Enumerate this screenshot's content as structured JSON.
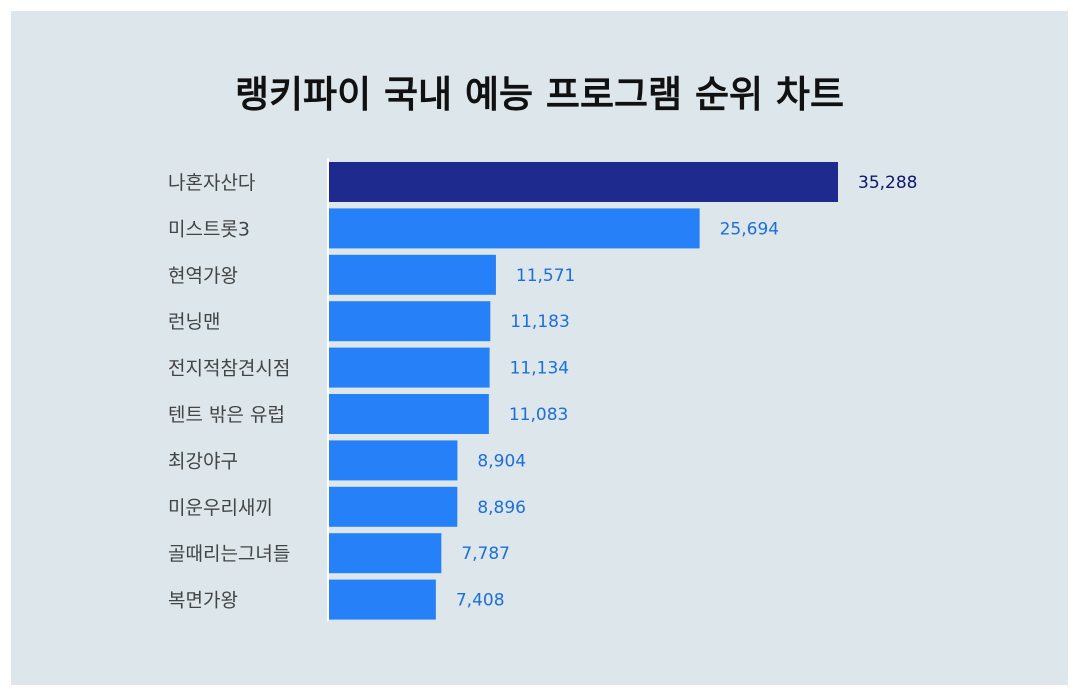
{
  "title": "랭키파이 국내 예능 프로그램 순위 차트",
  "colors": {
    "background": "#dce6eb",
    "highlight_bar": "#1f2a8e",
    "bar": "#2680f7",
    "highlight_value_text": "#0e1670",
    "value_text": "#1d6fd8",
    "category_text": "#444444"
  },
  "chart_data": {
    "type": "bar",
    "orientation": "horizontal",
    "title": "랭키파이 국내 예능 프로그램 순위 차트",
    "xlabel": "",
    "ylabel": "",
    "grid": false,
    "xlim": [
      0,
      35288
    ],
    "categories": [
      "나혼자산다",
      "미스트롯3",
      "현역가왕",
      "런닝맨",
      "전지적참견시점",
      "텐트 밖은 유럽",
      "최강야구",
      "미운우리새끼",
      "골때리는그녀들",
      "복면가왕"
    ],
    "values": [
      35288,
      25694,
      11571,
      11183,
      11134,
      11083,
      8904,
      8896,
      7787,
      7408
    ],
    "value_labels": [
      "35,288",
      "25,694",
      "11,571",
      "11,183",
      "11,134",
      "11,083",
      "8,904",
      "8,896",
      "7,787",
      "7,408"
    ],
    "highlight_index": 0
  }
}
